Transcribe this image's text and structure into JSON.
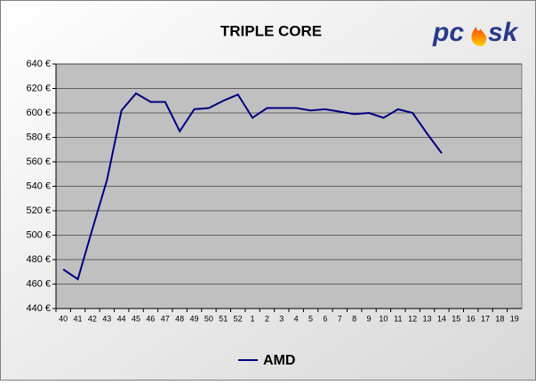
{
  "chart_data": {
    "type": "line",
    "title": "TRIPLE CORE",
    "logo": [
      "pc",
      "sk"
    ],
    "categories": [
      "40",
      "41",
      "42",
      "43",
      "44",
      "45",
      "46",
      "47",
      "48",
      "49",
      "50",
      "51",
      "52",
      "1",
      "2",
      "3",
      "4",
      "5",
      "6",
      "7",
      "8",
      "9",
      "10",
      "11",
      "12",
      "13",
      "14",
      "15",
      "16",
      "17",
      "18",
      "19"
    ],
    "series": [
      {
        "name": "AMD",
        "color": "#000080",
        "values": [
          472,
          464,
          505,
          545,
          602,
          616,
          609,
          609,
          585,
          603,
          604,
          610,
          615,
          596,
          604,
          604,
          604,
          602,
          603,
          601,
          599,
          600,
          596,
          603,
          600,
          583,
          567,
          null,
          null,
          null,
          null,
          null
        ]
      }
    ],
    "ylim": [
      440,
      640
    ],
    "yticks": [
      {
        "value": 440,
        "label": "440 €"
      },
      {
        "value": 460,
        "label": "460 €"
      },
      {
        "value": 480,
        "label": "480 €"
      },
      {
        "value": 500,
        "label": "500 €"
      },
      {
        "value": 520,
        "label": "520 €"
      },
      {
        "value": 540,
        "label": "540 €"
      },
      {
        "value": 560,
        "label": "560 €"
      },
      {
        "value": 580,
        "label": "580 €"
      },
      {
        "value": 600,
        "label": "600 €"
      },
      {
        "value": 620,
        "label": "620 €"
      },
      {
        "value": 640,
        "label": "640 €"
      }
    ],
    "grid": true,
    "legend": "bottom"
  }
}
